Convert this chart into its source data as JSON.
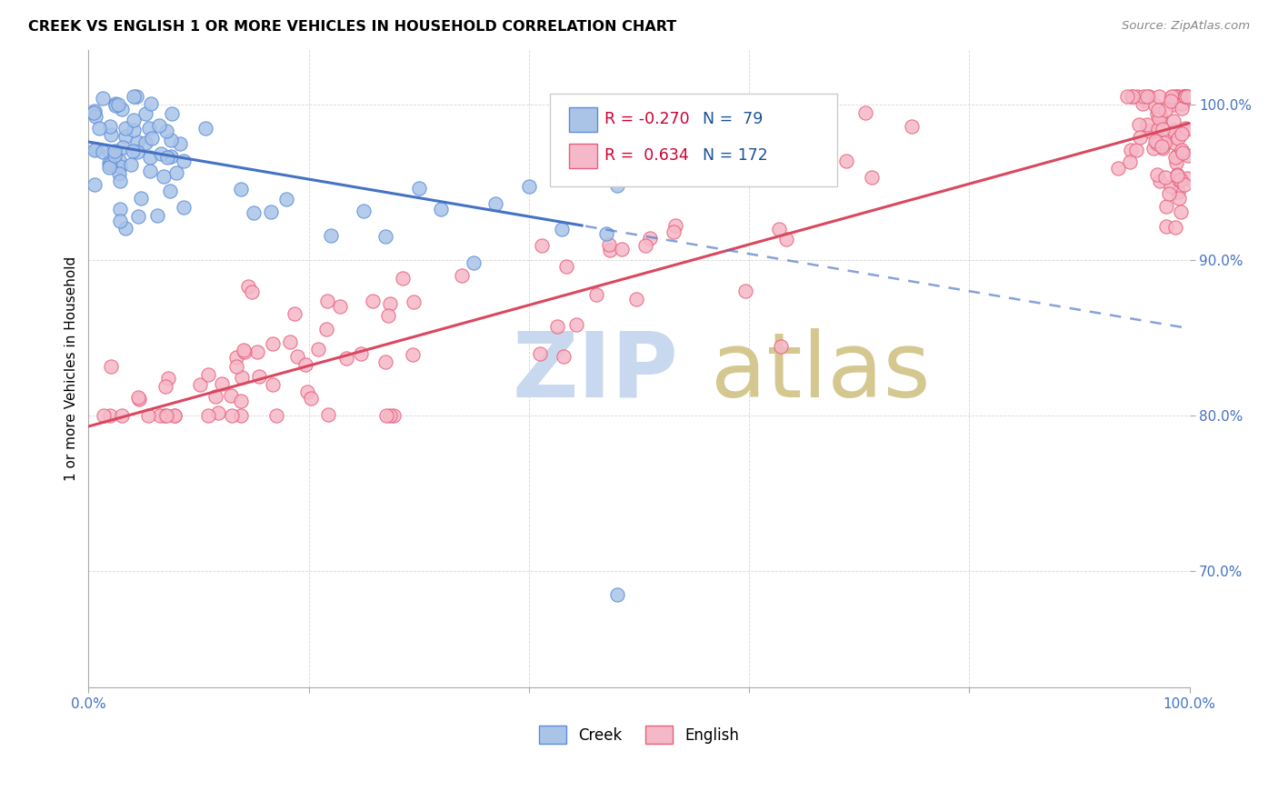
{
  "title": "CREEK VS ENGLISH 1 OR MORE VEHICLES IN HOUSEHOLD CORRELATION CHART",
  "source": "Source: ZipAtlas.com",
  "ylabel": "1 or more Vehicles in Household",
  "xlim": [
    0.0,
    1.0
  ],
  "ylim": [
    0.625,
    1.035
  ],
  "ytick_positions": [
    0.7,
    0.8,
    0.9,
    1.0
  ],
  "ytick_labels": [
    "70.0%",
    "80.0%",
    "90.0%",
    "100.0%"
  ],
  "creek_R": -0.27,
  "creek_N": 79,
  "english_R": 0.634,
  "english_N": 172,
  "creek_fill": "#aac4e8",
  "creek_edge": "#5b8dd9",
  "english_fill": "#f5b8c8",
  "english_edge": "#e8607a",
  "creek_line_color": "#4472c4",
  "english_line_color": "#d9485f",
  "legend_R_color": "#cc0033",
  "legend_N_color": "#1a5296",
  "watermark_zip_color": "#c8d8ee",
  "watermark_atlas_color": "#d4c890",
  "dot_size": 120
}
